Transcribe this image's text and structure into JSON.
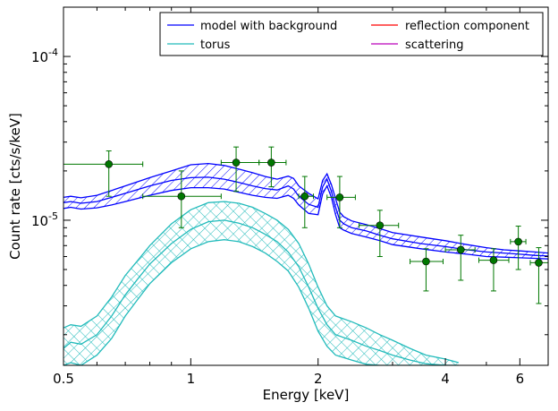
{
  "chart_data": {
    "type": "line",
    "xlabel": "Energy [keV]",
    "ylabel": "Count rate [cts/s/keV]",
    "xscale": "log",
    "yscale": "log",
    "xlim": [
      0.5,
      7.0
    ],
    "ylim": [
      1.3e-06,
      0.0002
    ],
    "x_ticks": [
      {
        "value": 0.5,
        "label": "0.5"
      },
      {
        "value": 1,
        "label": "1"
      },
      {
        "value": 2,
        "label": "2"
      },
      {
        "value": 4,
        "label": "4"
      },
      {
        "value": 6,
        "label": "6"
      }
    ],
    "y_ticks": [
      {
        "value": 1e-05,
        "base": "10",
        "exp": "-5"
      },
      {
        "value": 0.0001,
        "base": "10",
        "exp": "-4"
      }
    ],
    "grid": false,
    "legend": {
      "placement": "top-right",
      "columns": 2
    },
    "series": [
      {
        "name": "model with background",
        "color": "#0000ff",
        "hatch": "diagonal",
        "x": [
          0.5,
          0.52,
          0.55,
          0.6,
          0.65,
          0.7,
          0.8,
          0.9,
          1.0,
          1.1,
          1.2,
          1.3,
          1.4,
          1.5,
          1.6,
          1.7,
          1.75,
          1.8,
          1.9,
          2.0,
          2.05,
          2.1,
          2.15,
          2.2,
          2.25,
          2.3,
          2.4,
          2.6,
          2.8,
          3.0,
          3.5,
          4.0,
          4.5,
          5.0,
          5.5,
          6.0,
          6.5,
          7.0
        ],
        "mid": [
          1.28e-05,
          1.3e-05,
          1.27e-05,
          1.3e-05,
          1.38e-05,
          1.46e-05,
          1.62e-05,
          1.75e-05,
          1.82e-05,
          1.83e-05,
          1.78e-05,
          1.7e-05,
          1.62e-05,
          1.56e-05,
          1.53e-05,
          1.62e-05,
          1.55e-05,
          1.4e-05,
          1.25e-05,
          1.2e-05,
          1.6e-05,
          1.78e-05,
          1.5e-05,
          1.2e-05,
          1e-05,
          9.5e-06,
          9e-06,
          8.6e-06,
          8.1e-06,
          7.7e-06,
          7.2e-06,
          6.9e-06,
          6.6e-06,
          6.4e-06,
          6.3e-06,
          6.2e-06,
          6.1e-06,
          6.05e-06
        ],
        "upper": [
          1.38e-05,
          1.4e-05,
          1.37e-05,
          1.42e-05,
          1.52e-05,
          1.62e-05,
          1.82e-05,
          2e-05,
          2.18e-05,
          2.22e-05,
          2.16e-05,
          2.05e-05,
          1.95e-05,
          1.85e-05,
          1.78e-05,
          1.86e-05,
          1.8e-05,
          1.62e-05,
          1.46e-05,
          1.35e-05,
          1.75e-05,
          1.92e-05,
          1.65e-05,
          1.35e-05,
          1.12e-05,
          1.05e-05,
          9.9e-06,
          9.4e-06,
          8.9e-06,
          8.4e-06,
          7.9e-06,
          7.5e-06,
          7.1e-06,
          6.8e-06,
          6.6e-06,
          6.5e-06,
          6.4e-06,
          6.3e-06
        ],
        "lower": [
          1.18e-05,
          1.2e-05,
          1.17e-05,
          1.19e-05,
          1.24e-05,
          1.3e-05,
          1.42e-05,
          1.52e-05,
          1.58e-05,
          1.58e-05,
          1.55e-05,
          1.48e-05,
          1.42e-05,
          1.38e-05,
          1.36e-05,
          1.42e-05,
          1.36e-05,
          1.24e-05,
          1.1e-05,
          1.08e-05,
          1.45e-05,
          1.62e-05,
          1.38e-05,
          1.08e-05,
          9e-06,
          8.7e-06,
          8.3e-06,
          7.9e-06,
          7.5e-06,
          7.1e-06,
          6.7e-06,
          6.4e-06,
          6.2e-06,
          6e-06,
          5.95e-06,
          5.9e-06,
          5.85e-06,
          5.8e-06
        ]
      },
      {
        "name": "torus",
        "color": "#22bbbb",
        "hatch": "cross",
        "x": [
          0.5,
          0.52,
          0.55,
          0.6,
          0.65,
          0.7,
          0.75,
          0.8,
          0.9,
          1.0,
          1.1,
          1.2,
          1.3,
          1.4,
          1.5,
          1.6,
          1.7,
          1.8,
          1.9,
          2.0,
          2.1,
          2.2,
          2.4,
          2.6,
          2.8,
          3.0,
          3.3,
          3.6,
          4.0,
          4.3
        ],
        "mid": [
          1.65e-06,
          1.8e-06,
          1.75e-06,
          2e-06,
          2.6e-06,
          3.5e-06,
          4.4e-06,
          5.4e-06,
          7.2e-06,
          8.8e-06,
          9.8e-06,
          1e-05,
          9.6e-06,
          9e-06,
          8.2e-06,
          7.4e-06,
          6.4e-06,
          5.2e-06,
          3.9e-06,
          2.9e-06,
          2.3e-06,
          2e-06,
          1.85e-06,
          1.7e-06,
          1.6e-06,
          1.5e-06,
          1.4e-06,
          1.33e-06,
          1.3e-06,
          1.3e-06
        ],
        "upper": [
          2.2e-06,
          2.3e-06,
          2.25e-06,
          2.6e-06,
          3.4e-06,
          4.6e-06,
          5.7e-06,
          7e-06,
          9.5e-06,
          1.16e-05,
          1.28e-05,
          1.3e-05,
          1.27e-05,
          1.2e-05,
          1.1e-05,
          1e-05,
          8.8e-06,
          7.2e-06,
          5.4e-06,
          3.9e-06,
          3e-06,
          2.6e-06,
          2.4e-06,
          2.2e-06,
          2e-06,
          1.85e-06,
          1.65e-06,
          1.5e-06,
          1.42e-06,
          1.35e-06
        ],
        "lower": [
          1.3e-06,
          1.35e-06,
          1.3e-06,
          1.5e-06,
          1.9e-06,
          2.6e-06,
          3.3e-06,
          4.1e-06,
          5.5e-06,
          6.7e-06,
          7.4e-06,
          7.6e-06,
          7.4e-06,
          6.9e-06,
          6.3e-06,
          5.6e-06,
          4.9e-06,
          3.9e-06,
          2.9e-06,
          2.1e-06,
          1.7e-06,
          1.5e-06,
          1.4e-06,
          1.32e-06,
          1.3e-06,
          1.3e-06,
          1.3e-06,
          1.3e-06,
          1.3e-06,
          1.3e-06
        ]
      },
      {
        "name": "reflection component",
        "color": "#ff0000",
        "x": [],
        "mid": []
      },
      {
        "name": "scattering",
        "color": "#bb00bb",
        "x": [],
        "mid": []
      }
    ],
    "data_points": {
      "color": "#007700",
      "points": [
        {
          "x": 0.64,
          "y": 2.2e-05,
          "xlo": 0.5,
          "xhi": 0.77,
          "ylo": 1.4e-05,
          "yhi": 2.65e-05
        },
        {
          "x": 0.95,
          "y": 1.4e-05,
          "xlo": 0.77,
          "xhi": 1.18,
          "ylo": 9e-06,
          "yhi": 2e-05
        },
        {
          "x": 1.28,
          "y": 2.25e-05,
          "xlo": 1.18,
          "xhi": 1.45,
          "ylo": 1.5e-05,
          "yhi": 2.8e-05
        },
        {
          "x": 1.55,
          "y": 2.25e-05,
          "xlo": 1.45,
          "xhi": 1.68,
          "ylo": 1.6e-05,
          "yhi": 2.8e-05
        },
        {
          "x": 1.86,
          "y": 1.4e-05,
          "xlo": 1.8,
          "xhi": 1.95,
          "ylo": 9e-06,
          "yhi": 1.85e-05
        },
        {
          "x": 2.25,
          "y": 1.38e-05,
          "xlo": 2.1,
          "xhi": 2.45,
          "ylo": 9e-06,
          "yhi": 1.85e-05
        },
        {
          "x": 2.8,
          "y": 9.3e-06,
          "xlo": 2.5,
          "xhi": 3.1,
          "ylo": 6e-06,
          "yhi": 1.15e-05
        },
        {
          "x": 3.6,
          "y": 5.6e-06,
          "xlo": 3.3,
          "xhi": 3.95,
          "ylo": 3.7e-06,
          "yhi": 6.7e-06
        },
        {
          "x": 4.35,
          "y": 6.6e-06,
          "xlo": 4.0,
          "xhi": 4.7,
          "ylo": 4.3e-06,
          "yhi": 8.1e-06
        },
        {
          "x": 5.2,
          "y": 5.7e-06,
          "xlo": 4.8,
          "xhi": 5.65,
          "ylo": 3.7e-06,
          "yhi": 6.7e-06
        },
        {
          "x": 5.95,
          "y": 7.4e-06,
          "xlo": 5.7,
          "xhi": 6.2,
          "ylo": 5e-06,
          "yhi": 9.2e-06
        },
        {
          "x": 6.65,
          "y": 5.5e-06,
          "xlo": 6.35,
          "xhi": 7.0,
          "ylo": 3.1e-06,
          "yhi": 6.8e-06
        }
      ]
    }
  }
}
